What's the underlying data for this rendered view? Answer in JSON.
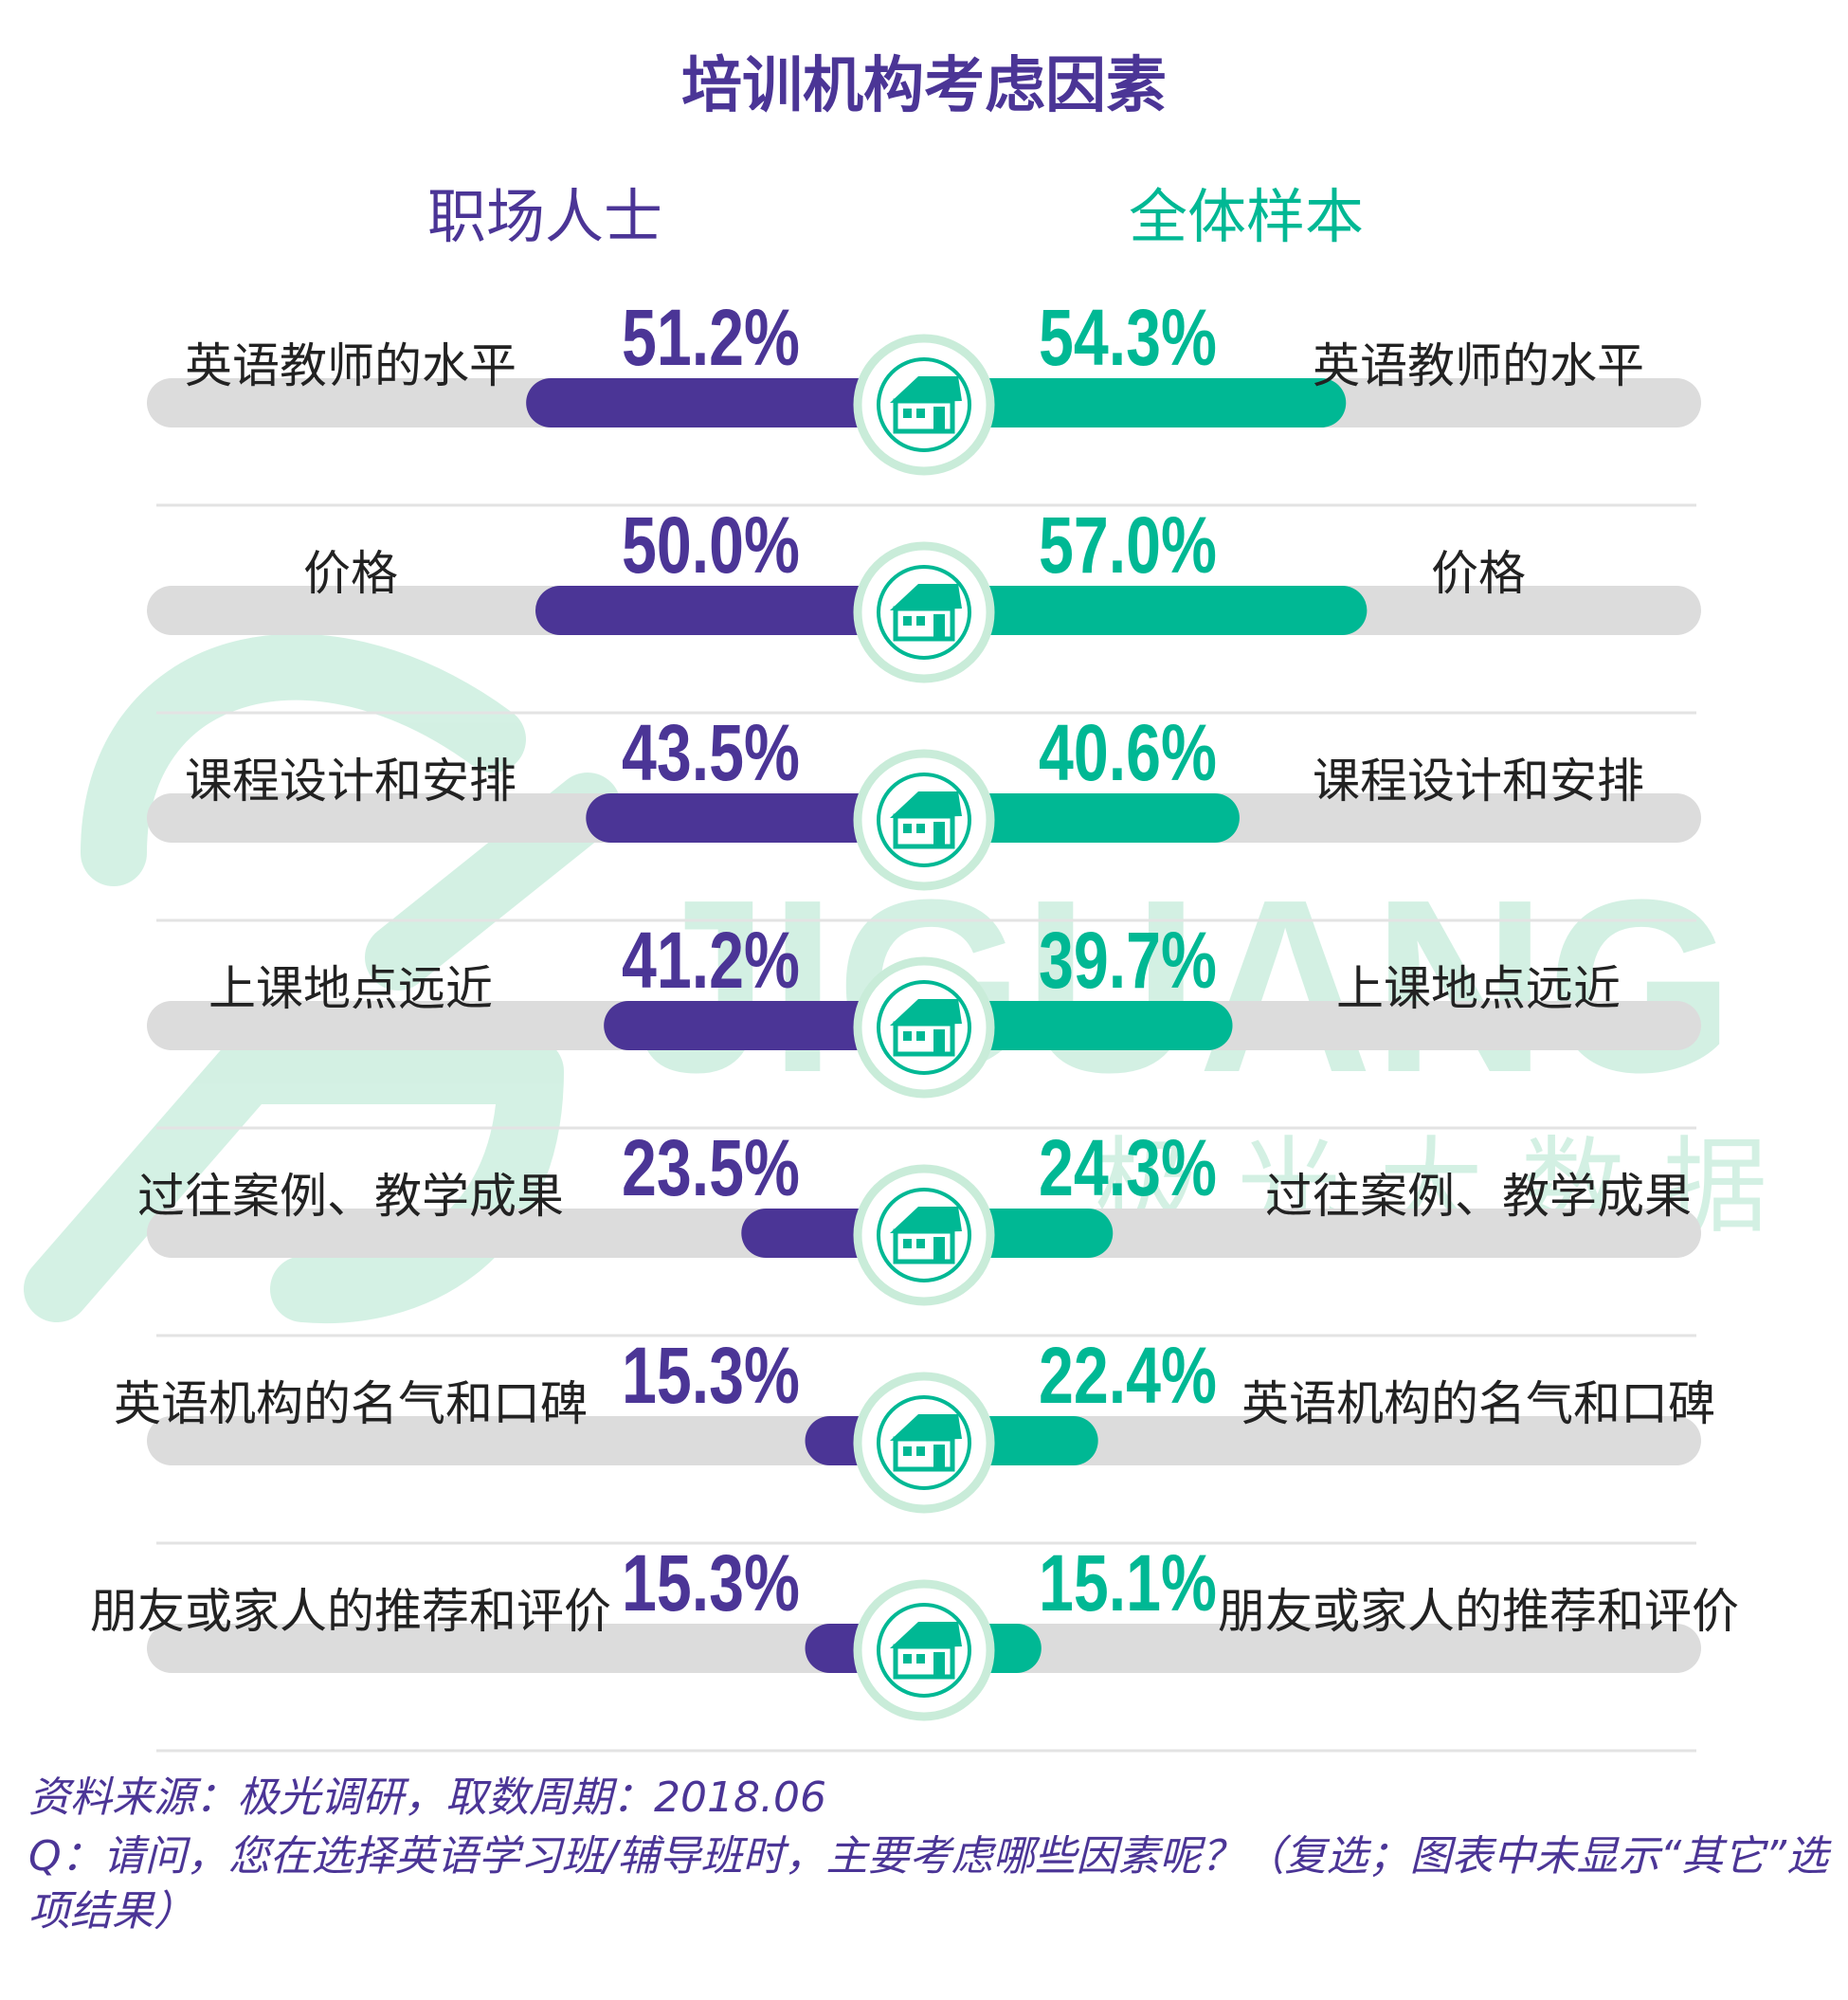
{
  "chart_data": {
    "type": "bar",
    "title": "培训机构考虑因素",
    "categories": [
      "英语教师的水平",
      "价格",
      "课程设计和安排",
      "上课地点远近",
      "过往案例、教学成果",
      "英语机构的名气和口碑",
      "朋友或家人的推荐和评价"
    ],
    "series": [
      {
        "name": "职场人士",
        "values": [
          51.2,
          50.0,
          43.5,
          41.2,
          23.5,
          15.3,
          15.3
        ],
        "labels": [
          "51.2%",
          "50.0%",
          "43.5%",
          "41.2%",
          "23.5%",
          "15.3%",
          "15.3%"
        ]
      },
      {
        "name": "全体样本",
        "values": [
          54.3,
          57.0,
          40.6,
          39.7,
          24.3,
          22.4,
          15.1
        ],
        "labels": [
          "54.3%",
          "57.0%",
          "40.6%",
          "39.7%",
          "24.3%",
          "22.4%",
          "15.1%"
        ]
      }
    ],
    "xlim": [
      0,
      100
    ]
  },
  "watermark": {
    "text": "JIGUANG",
    "subtext": "极光大数据"
  },
  "footer": {
    "source": "资料来源：极光调研，取数周期：2018.06",
    "question": "Q：请问，您在选择英语学习班/辅导班时，主要考虑哪些因素呢？（复选；图表中未显示“其它”选项结果）"
  },
  "colors": {
    "left": "#4b3596",
    "right": "#00b894",
    "track": "#dcdcdc",
    "icon_ring": "#c9ecd9",
    "title": "#4b3596"
  }
}
